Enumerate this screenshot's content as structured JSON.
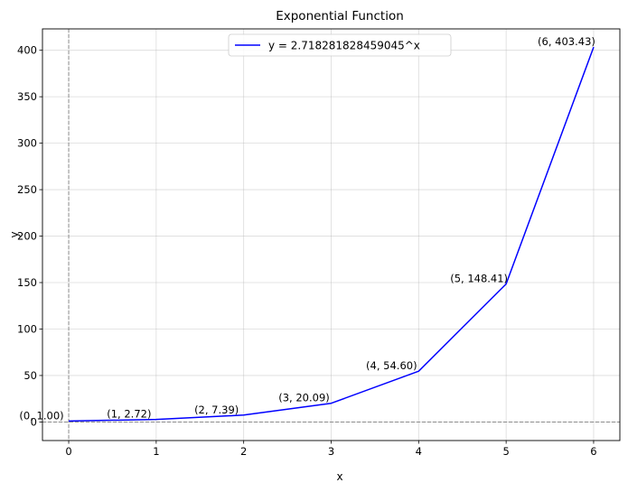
{
  "chart_data": {
    "type": "line",
    "title": "Exponential Function",
    "xlabel": "x",
    "ylabel": "y",
    "xlim": [
      -0.3,
      6.3
    ],
    "ylim": [
      -20,
      423
    ],
    "grid": true,
    "legend_position": "top-center",
    "x_ticks": [
      0,
      1,
      2,
      3,
      4,
      5,
      6
    ],
    "y_ticks": [
      0,
      50,
      100,
      150,
      200,
      250,
      300,
      350,
      400
    ],
    "reference_lines": {
      "x": 0,
      "y": 0,
      "color": "#808080",
      "style": "dashed"
    },
    "series": [
      {
        "name": "y = 2.718281828459045^x",
        "color": "#0000ff",
        "x": [
          0,
          1,
          2,
          3,
          4,
          5,
          6
        ],
        "y": [
          1.0,
          2.72,
          7.39,
          20.09,
          54.6,
          148.41,
          403.43
        ],
        "labels": [
          "(0, 1.00)",
          "(1, 2.72)",
          "(2, 7.39)",
          "(3, 20.09)",
          "(4, 54.60)",
          "(5, 148.41)",
          "(6, 403.43)"
        ]
      }
    ]
  }
}
